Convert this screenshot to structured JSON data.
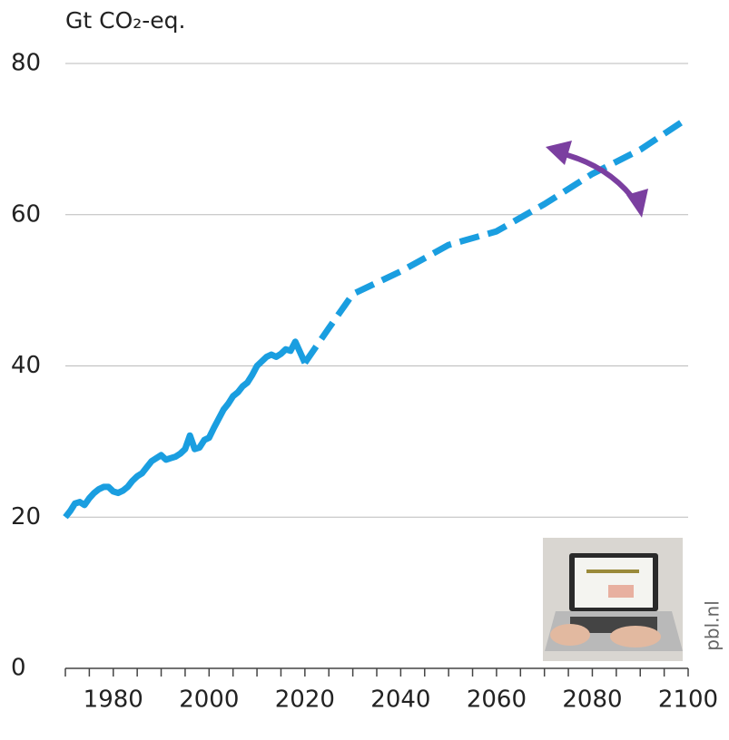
{
  "chart_data": {
    "type": "line",
    "ylabel": "Gt CO₂-eq.",
    "source": "pbl.nl",
    "xlim": [
      1970,
      2100
    ],
    "xticks": [
      1980,
      2000,
      2020,
      2040,
      2060,
      2080,
      2100
    ],
    "xminorticks": [
      1970,
      1975,
      1980,
      1985,
      1990,
      1995,
      2000,
      2005,
      2010,
      2015,
      2020,
      2025,
      2030,
      2035,
      2040,
      2045,
      2050,
      2055,
      2060,
      2065,
      2070,
      2075,
      2080,
      2085,
      2090,
      2095,
      2100
    ],
    "ylim": [
      0,
      80
    ],
    "yticks": [
      0,
      20,
      40,
      60,
      80
    ],
    "grid": true,
    "series": [
      {
        "color": "#1a9ee0",
        "style": "solid",
        "x": [
          1970,
          1971,
          1972,
          1973,
          1974,
          1975,
          1976,
          1977,
          1978,
          1979,
          1980,
          1981,
          1982,
          1983,
          1984,
          1985,
          1986,
          1987,
          1988,
          1989,
          1990,
          1991,
          1992,
          1993,
          1994,
          1995,
          1996,
          1997,
          1998,
          1999,
          2000,
          2001,
          2002,
          2003,
          2004,
          2005,
          2006,
          2007,
          2008,
          2009,
          2010,
          2011,
          2012,
          2013,
          2014,
          2015,
          2016,
          2017,
          2018,
          2019,
          2020
        ],
        "values": [
          20.0,
          20.8,
          21.8,
          22.0,
          21.6,
          22.5,
          23.2,
          23.7,
          24.0,
          24.0,
          23.4,
          23.2,
          23.5,
          24.0,
          24.8,
          25.4,
          25.8,
          26.6,
          27.4,
          27.8,
          28.2,
          27.6,
          27.8,
          28.0,
          28.4,
          29.0,
          30.8,
          29.0,
          29.2,
          30.2,
          30.5,
          31.8,
          33.0,
          34.2,
          35.0,
          36.0,
          36.5,
          37.3,
          37.8,
          38.8,
          40.0,
          40.6,
          41.2,
          41.5,
          41.2,
          41.6,
          42.2,
          42.0,
          43.2,
          41.8,
          40.4
        ]
      },
      {
        "color": "#1a9ee0",
        "style": "dashed",
        "x": [
          2020,
          2025,
          2030,
          2040,
          2050,
          2060,
          2070,
          2080,
          2090,
          2100
        ],
        "values": [
          40.4,
          45.0,
          49.5,
          52.5,
          56.0,
          57.8,
          61.4,
          65.4,
          68.6,
          72.8
        ]
      }
    ]
  }
}
